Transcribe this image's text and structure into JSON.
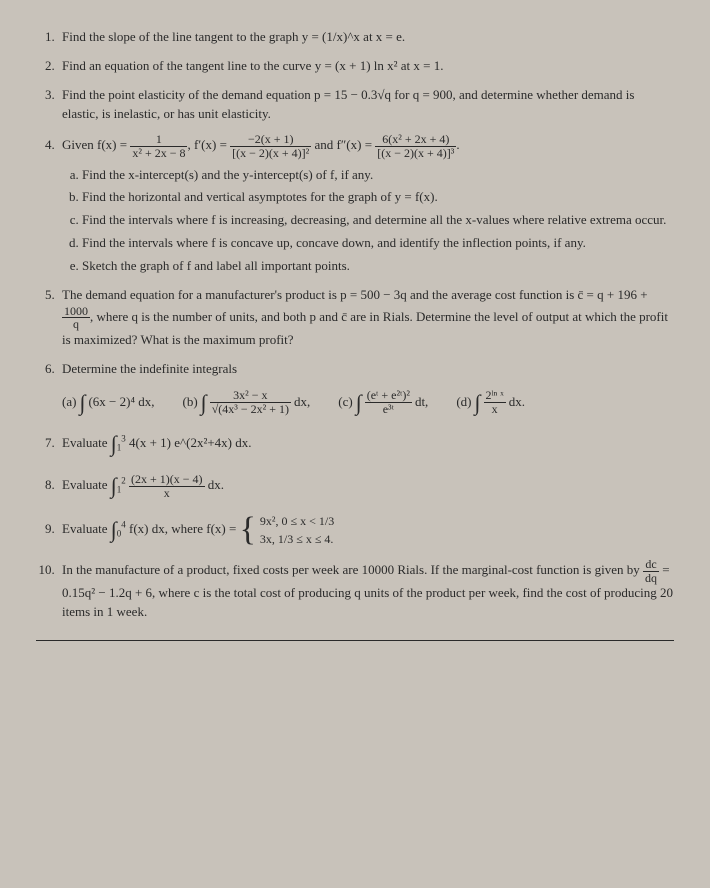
{
  "q1": "Find the slope of the line tangent to the graph y = (1/x)^x at x = e.",
  "q2": "Find an equation of the tangent line to the curve y = (x + 1) ln x²  at   x = 1.",
  "q3": "Find the point elasticity of the demand equation p = 15 − 0.3√q for q = 900, and determine whether demand is elastic, is inelastic, or has unit elasticity.",
  "q4_lead": "Given f(x) =",
  "q4_f_num": "1",
  "q4_f_den": "x² + 2x − 8",
  "q4_mid1": ",  f′(x) =",
  "q4_fp_num": "−2(x + 1)",
  "q4_fp_den": "[(x − 2)(x + 4)]²",
  "q4_mid2": " and f″(x) =",
  "q4_fpp_num": "6(x² + 2x + 4)",
  "q4_fpp_den": "[(x − 2)(x + 4)]³",
  "q4_tail": ".",
  "q4a": "Find the x-intercept(s) and the y-intercept(s) of f, if any.",
  "q4b": "Find the horizontal and vertical asymptotes for the graph of y = f(x).",
  "q4c": "Find the intervals where f is increasing, decreasing, and determine all the x-values where relative extrema occur.",
  "q4d": "Find the intervals where f is concave up, concave down, and identify the inflection points, if any.",
  "q4e": "Sketch the graph of f and label all important points.",
  "q5_a": "The demand equation for a manufacturer's product is p = 500 − 3q and the average cost function is c̄ = q + 196 +",
  "q5_frac_num": "1000",
  "q5_frac_den": "q",
  "q5_b": ", where q is the number of units, and both p and c̄ are in Rials. Determine the level of output at which the profit is maximized? What is the maximum profit?",
  "q6": "Determine the indefinite integrals",
  "q6a_lbl": "(a)",
  "q6a": "(6x − 2)⁴ dx,",
  "q6b_lbl": "(b)",
  "q6b_num": "3x² − x",
  "q6b_den": "√(4x³ − 2x² + 1)",
  "q6b_tail": " dx,",
  "q6c_lbl": "(c)",
  "q6c_num": "(eᵗ + e²ᵗ)²",
  "q6c_den": "e³ᵗ",
  "q6c_tail": " dt,",
  "q6d_lbl": "(d)",
  "q6d_num": "2ˡⁿ ˣ",
  "q6d_den": "x",
  "q6d_tail": " dx.",
  "q7_lead": "Evaluate ",
  "q7_low": "1",
  "q7_high": "3",
  "q7_body": "4(x + 1) e^(2x²+4x) dx.",
  "q8_lead": "Evaluate ",
  "q8_low": "1",
  "q8_high": "2",
  "q8_num": "(2x + 1)(x − 4)",
  "q8_den": "x",
  "q8_tail": " dx.",
  "q9_lead": "Evaluate ",
  "q9_low": "0",
  "q9_high": "4",
  "q9_mid": "f(x) dx,   where f(x) = ",
  "q9_case1": "9x²,   0 ≤ x < 1/3",
  "q9_case2": "3x,    1/3 ≤ x ≤ 4.",
  "q10_a": "In the manufacture of a product, fixed costs per week are 10000 Rials. If the marginal-cost function is given by ",
  "q10_num": "dc",
  "q10_den": "dq",
  "q10_b": " = 0.15q² − 1.2q + 6, where c is the total cost of producing q units of the product per week, find the cost of producing 20 items in 1 week."
}
